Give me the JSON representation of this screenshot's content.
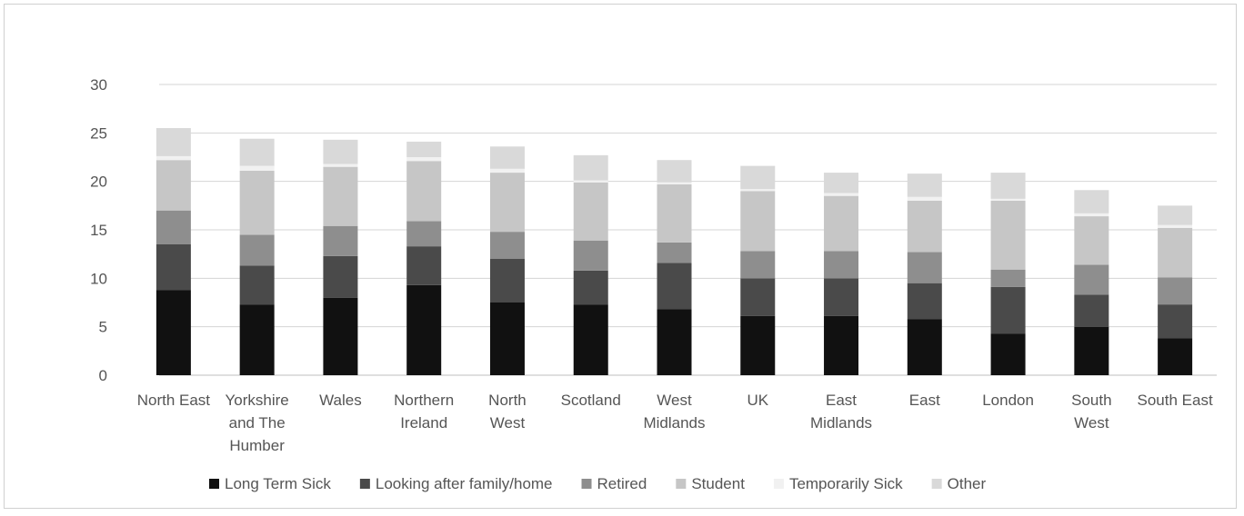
{
  "chart_data": {
    "type": "bar",
    "stacked": true,
    "title": "",
    "xlabel": "",
    "ylabel": "",
    "ylim": [
      0,
      30
    ],
    "yticks": [
      0,
      5,
      10,
      15,
      20,
      25,
      30
    ],
    "grid": true,
    "legend": "bottom",
    "categories": [
      "North East",
      "Yorkshire and The Humber",
      "Wales",
      "Northern Ireland",
      "North West",
      "Scotland",
      "West Midlands",
      "UK",
      "East Midlands",
      "East",
      "London",
      "South West",
      "South East"
    ],
    "category_lines": [
      [
        "North East"
      ],
      [
        "Yorkshire",
        "and The",
        "Humber"
      ],
      [
        "Wales"
      ],
      [
        "Northern",
        "Ireland"
      ],
      [
        "North",
        "West"
      ],
      [
        "Scotland"
      ],
      [
        "West",
        "Midlands"
      ],
      [
        "UK"
      ],
      [
        "East",
        "Midlands"
      ],
      [
        "East"
      ],
      [
        "London"
      ],
      [
        "South",
        "West"
      ],
      [
        "South East"
      ]
    ],
    "series": [
      {
        "name": "Long Term Sick",
        "color": "#111111",
        "values": [
          8.8,
          7.3,
          8.0,
          9.3,
          7.5,
          7.3,
          6.8,
          6.1,
          6.1,
          5.8,
          4.3,
          5.0,
          3.8
        ]
      },
      {
        "name": "Looking after family/home",
        "color": "#4a4a4a",
        "values": [
          4.7,
          4.0,
          4.3,
          4.0,
          4.5,
          3.5,
          4.8,
          3.9,
          3.9,
          3.7,
          4.8,
          3.3,
          3.5
        ]
      },
      {
        "name": "Retired",
        "color": "#8e8e8e",
        "values": [
          3.5,
          3.2,
          3.1,
          2.6,
          2.8,
          3.1,
          2.1,
          2.8,
          2.8,
          3.2,
          1.8,
          3.1,
          2.8
        ]
      },
      {
        "name": "Student",
        "color": "#c6c6c6",
        "values": [
          5.2,
          6.6,
          6.1,
          6.2,
          6.1,
          6.0,
          6.0,
          6.2,
          5.7,
          5.3,
          7.1,
          5.0,
          5.1
        ]
      },
      {
        "name": "Temporarily Sick",
        "color": "#f1f1f1",
        "values": [
          0.4,
          0.5,
          0.3,
          0.4,
          0.4,
          0.2,
          0.2,
          0.2,
          0.3,
          0.4,
          0.2,
          0.3,
          0.3
        ]
      },
      {
        "name": "Other",
        "color": "#d9d9d9",
        "values": [
          2.9,
          2.8,
          2.5,
          1.6,
          2.3,
          2.6,
          2.3,
          2.4,
          2.1,
          2.4,
          2.7,
          2.4,
          2.0
        ]
      }
    ]
  }
}
